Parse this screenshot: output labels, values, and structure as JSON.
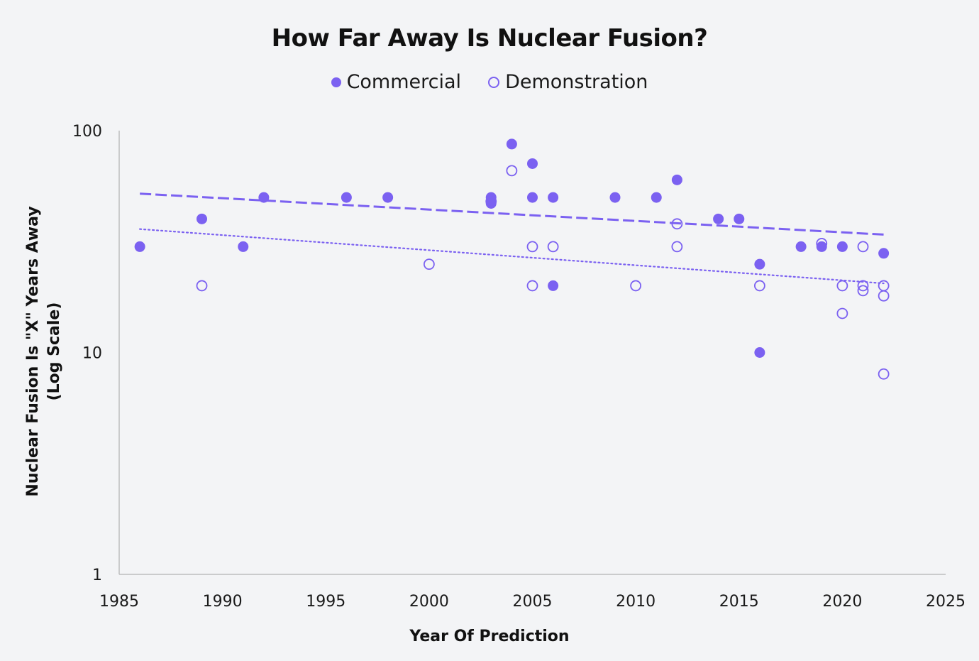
{
  "chart_data": {
    "type": "scatter",
    "title": "How Far Away Is Nuclear Fusion?",
    "xlabel": "Year Of Prediction",
    "ylabel_line1": "Nuclear Fusion Is \"X\" Years Away",
    "ylabel_line2": "(Log Scale)",
    "xlim": [
      1985,
      2025
    ],
    "ylim": [
      1,
      100
    ],
    "yscale": "log",
    "x_ticks": [
      "1985",
      "1990",
      "1995",
      "2000",
      "2005",
      "2010",
      "2015",
      "2020",
      "2025"
    ],
    "y_ticks": [
      "1",
      "10",
      "100"
    ],
    "grid": false,
    "legend_position": "top-center",
    "colors": {
      "series": "#7b61f1",
      "axis": "#bdbdbd"
    },
    "series": [
      {
        "name": "Commercial",
        "marker": "filled-circle",
        "trendline": "dashed",
        "trend": [
          [
            1986,
            52
          ],
          [
            2022,
            34
          ]
        ],
        "points": [
          [
            1986,
            30
          ],
          [
            1989,
            40
          ],
          [
            1991,
            30
          ],
          [
            1992,
            50
          ],
          [
            1996,
            50
          ],
          [
            1998,
            50
          ],
          [
            2003,
            50
          ],
          [
            2003,
            47
          ],
          [
            2004,
            87
          ],
          [
            2005,
            71
          ],
          [
            2005,
            50
          ],
          [
            2006,
            50
          ],
          [
            2006,
            20
          ],
          [
            2009,
            50
          ],
          [
            2011,
            50
          ],
          [
            2012,
            60
          ],
          [
            2014,
            40
          ],
          [
            2015,
            40
          ],
          [
            2016,
            25
          ],
          [
            2016,
            10
          ],
          [
            2018,
            30
          ],
          [
            2019,
            30
          ],
          [
            2020,
            30
          ],
          [
            2022,
            28
          ]
        ]
      },
      {
        "name": "Demonstration",
        "marker": "open-circle",
        "trendline": "dotted",
        "trend": [
          [
            1986,
            36
          ],
          [
            2022,
            20.5
          ]
        ],
        "points": [
          [
            1989,
            20
          ],
          [
            2000,
            25
          ],
          [
            2003,
            48
          ],
          [
            2004,
            66
          ],
          [
            2005,
            30
          ],
          [
            2005,
            20
          ],
          [
            2006,
            30
          ],
          [
            2010,
            20
          ],
          [
            2012,
            38
          ],
          [
            2012,
            30
          ],
          [
            2016,
            20
          ],
          [
            2019,
            31
          ],
          [
            2020,
            20
          ],
          [
            2020,
            15
          ],
          [
            2021,
            30
          ],
          [
            2021,
            20
          ],
          [
            2021,
            19
          ],
          [
            2022,
            20
          ],
          [
            2022,
            18
          ],
          [
            2022,
            8
          ]
        ]
      }
    ]
  }
}
